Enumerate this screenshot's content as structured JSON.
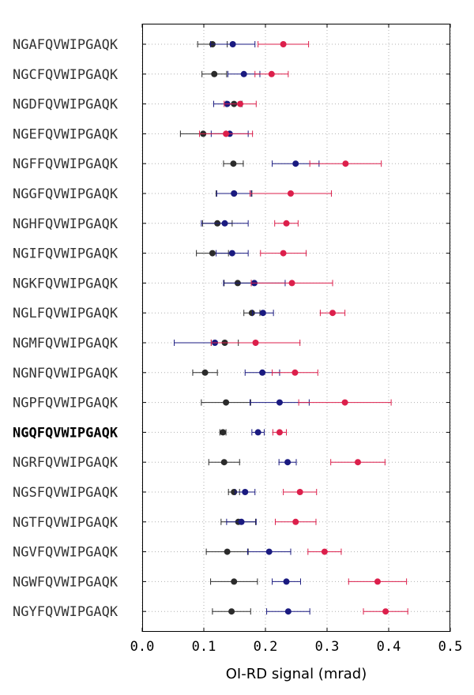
{
  "chart_data": {
    "type": "scatter",
    "subtype": "horizontal dot plot with error bars",
    "xlabel": "OI-RD signal (mrad)",
    "xlim": [
      0.0,
      0.5
    ],
    "xticks": [
      "0.0",
      "0.1",
      "0.2",
      "0.3",
      "0.4",
      "0.5"
    ],
    "grid": true,
    "highlight_category": "NGQFQVWIPGAQK",
    "categories": [
      "NGAFQVWIPGAQK",
      "NGCFQVWIPGAQK",
      "NGDFQVWIPGAQK",
      "NGEFQVWIPGAQK",
      "NGFFQVWIPGAQK",
      "NGGFQVWIPGAQK",
      "NGHFQVWIPGAQK",
      "NGIFQVWIPGAQK",
      "NGKFQVWIPGAQK",
      "NGLFQVWIPGAQK",
      "NGMFQVWIPGAQK",
      "NGNFQVWIPGAQK",
      "NGPFQVWIPGAQK",
      "NGQFQVWIPGAQK",
      "NGRFQVWIPGAQK",
      "NGSFQVWIPGAQK",
      "NGTFQVWIPGAQK",
      "NGVFQVWIPGAQK",
      "NGWFQVWIPGAQK",
      "NGYFQVWIPGAQK"
    ],
    "series": [
      {
        "color": "#2b2b2b",
        "values": [
          0.114,
          0.117,
          0.149,
          0.099,
          0.148,
          0.149,
          0.122,
          0.114,
          0.155,
          0.178,
          0.134,
          0.102,
          0.136,
          0.131,
          0.133,
          0.149,
          0.156,
          0.138,
          0.149,
          0.145
        ],
        "errors": [
          0.024,
          0.02,
          0.013,
          0.037,
          0.016,
          0.029,
          0.024,
          0.026,
          0.022,
          0.013,
          0.022,
          0.02,
          0.04,
          0.005,
          0.025,
          0.009,
          0.028,
          0.034,
          0.038,
          0.031
        ]
      },
      {
        "color": "#1a1a80",
        "values": [
          0.147,
          0.165,
          0.138,
          0.142,
          0.249,
          0.149,
          0.134,
          0.146,
          0.182,
          0.196,
          0.118,
          0.195,
          0.223,
          0.188,
          0.236,
          0.167,
          0.161,
          0.206,
          0.234,
          0.237
        ],
        "errors": [
          0.036,
          0.026,
          0.022,
          0.03,
          0.038,
          0.028,
          0.038,
          0.026,
          0.05,
          0.017,
          0.066,
          0.028,
          0.048,
          0.01,
          0.014,
          0.016,
          0.024,
          0.035,
          0.023,
          0.035
        ]
      },
      {
        "color": "#dc1f4b",
        "values": [
          0.229,
          0.21,
          0.159,
          0.136,
          0.33,
          0.241,
          0.234,
          0.229,
          0.243,
          0.309,
          0.184,
          0.248,
          0.329,
          0.223,
          0.35,
          0.256,
          0.249,
          0.296,
          0.382,
          0.395
        ],
        "errors": [
          0.041,
          0.027,
          0.026,
          0.043,
          0.058,
          0.066,
          0.019,
          0.037,
          0.066,
          0.02,
          0.072,
          0.037,
          0.075,
          0.011,
          0.044,
          0.027,
          0.033,
          0.027,
          0.047,
          0.036
        ]
      }
    ]
  }
}
